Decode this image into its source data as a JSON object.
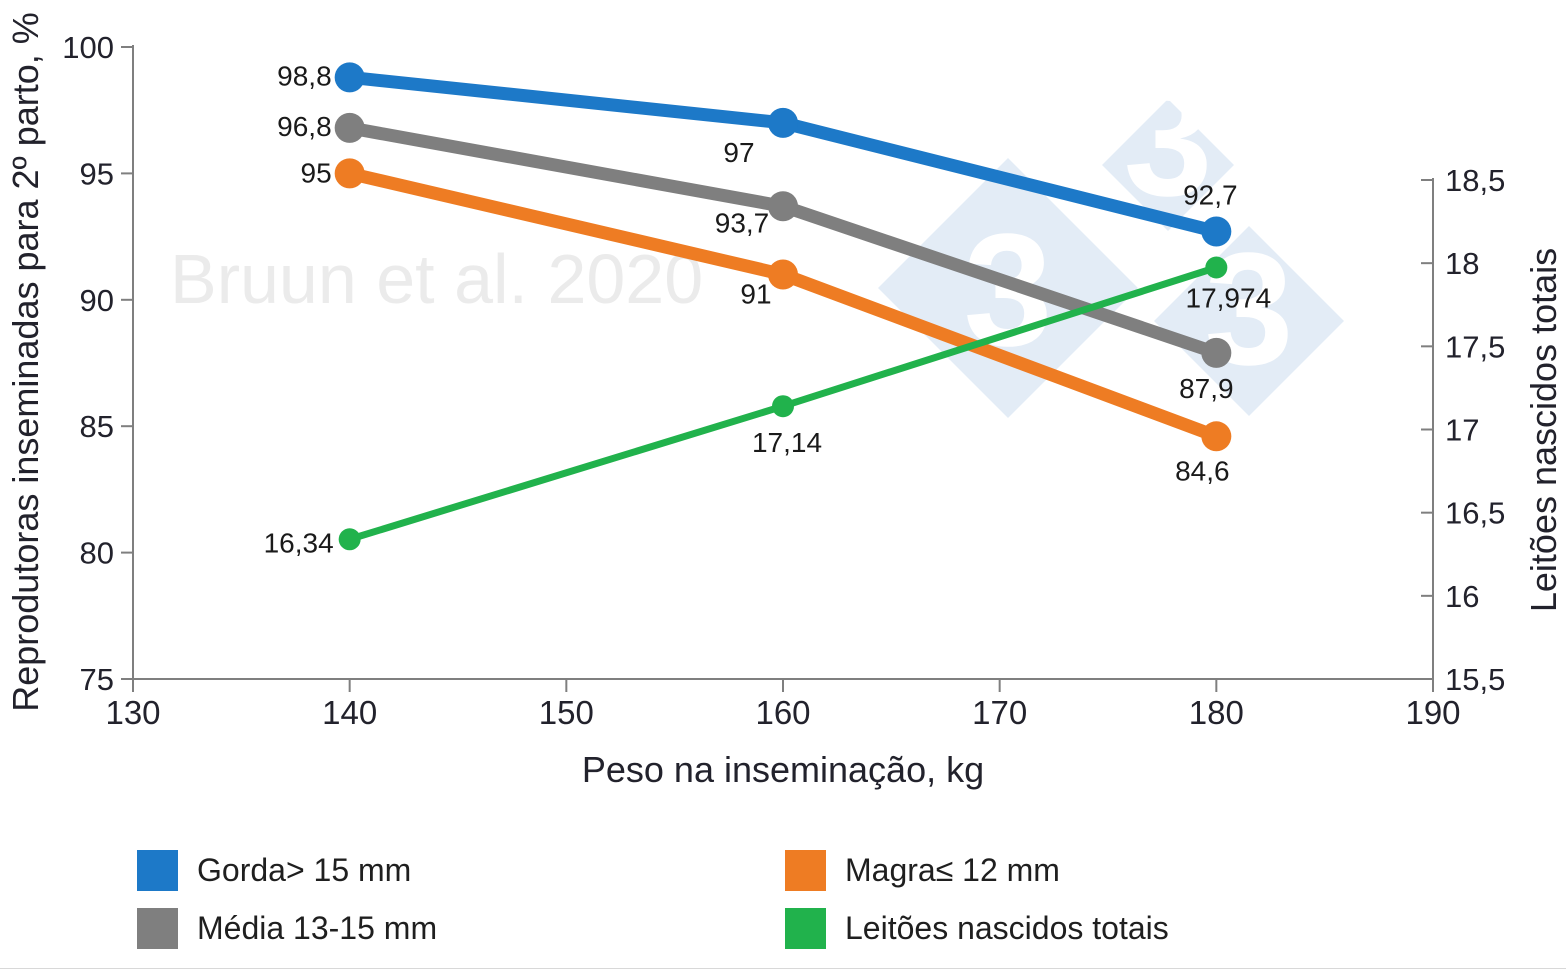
{
  "watermarks": {
    "citation": "Bruun et al. 2020",
    "logo_digit": "3",
    "logo_color": "#dce7f4"
  },
  "chart_data": {
    "type": "line",
    "x": [
      140,
      160,
      180
    ],
    "x_axis": {
      "title": "Peso na inseminação, kg",
      "range": [
        130,
        190
      ],
      "ticks": [
        {
          "v": 130,
          "label": "130"
        },
        {
          "v": 140,
          "label": "140"
        },
        {
          "v": 150,
          "label": "150"
        },
        {
          "v": 160,
          "label": "160"
        },
        {
          "v": 170,
          "label": "170"
        },
        {
          "v": 180,
          "label": "180"
        },
        {
          "v": 190,
          "label": "190"
        }
      ]
    },
    "y_left": {
      "title": "Reprodutoras inseminadas para 2º parto, %",
      "range": [
        75,
        100
      ],
      "ticks": [
        {
          "v": 100,
          "label": "100"
        },
        {
          "v": 95,
          "label": "95"
        },
        {
          "v": 90,
          "label": "90"
        },
        {
          "v": 85,
          "label": "85"
        },
        {
          "v": 80,
          "label": "80"
        },
        {
          "v": 75,
          "label": "75"
        }
      ]
    },
    "y_right": {
      "title": "Leitões nascidos totais",
      "range": [
        15.5,
        18.5
      ],
      "ticks": [
        {
          "v": 18.5,
          "label": "18,5"
        },
        {
          "v": 18,
          "label": "18"
        },
        {
          "v": 17.5,
          "label": "17,5"
        },
        {
          "v": 17,
          "label": "17"
        },
        {
          "v": 16.5,
          "label": "16,5"
        },
        {
          "v": 16,
          "label": "16"
        },
        {
          "v": 15.5,
          "label": "15,5"
        }
      ]
    },
    "series": [
      {
        "name": "Gorda> 15 mm",
        "color": "#1d79c8",
        "axis": "left",
        "values": [
          98.8,
          97,
          92.7
        ],
        "labels": [
          "98,8",
          "97",
          "92,7"
        ]
      },
      {
        "name": "Média 13-15 mm",
        "color": "#7f7f7f",
        "axis": "left",
        "values": [
          96.8,
          93.7,
          87.9
        ],
        "labels": [
          "96,8",
          "93,7",
          "87,9"
        ]
      },
      {
        "name": "Magra≤ 12 mm",
        "color": "#ee7c23",
        "axis": "left",
        "values": [
          95,
          91,
          84.6
        ],
        "labels": [
          "95",
          "91",
          "84,6"
        ]
      },
      {
        "name": "Leitões nascidos totais",
        "color": "#21b24c",
        "axis": "right",
        "values": [
          16.34,
          17.14,
          17.974
        ],
        "labels": [
          "16,34",
          "17,14",
          "17,974"
        ]
      }
    ],
    "legend": {
      "columns": [
        {
          "items": [
            {
              "label": "Gorda> 15 mm",
              "color": "#1d79c8"
            },
            {
              "label": "Média 13-15 mm",
              "color": "#7f7f7f"
            }
          ]
        },
        {
          "items": [
            {
              "label": "Magra≤ 12 mm",
              "color": "#ee7c23"
            },
            {
              "label": "Leitões nascidos totais",
              "color": "#21b24c"
            }
          ]
        }
      ],
      "position": "bottom"
    },
    "grid": false
  }
}
